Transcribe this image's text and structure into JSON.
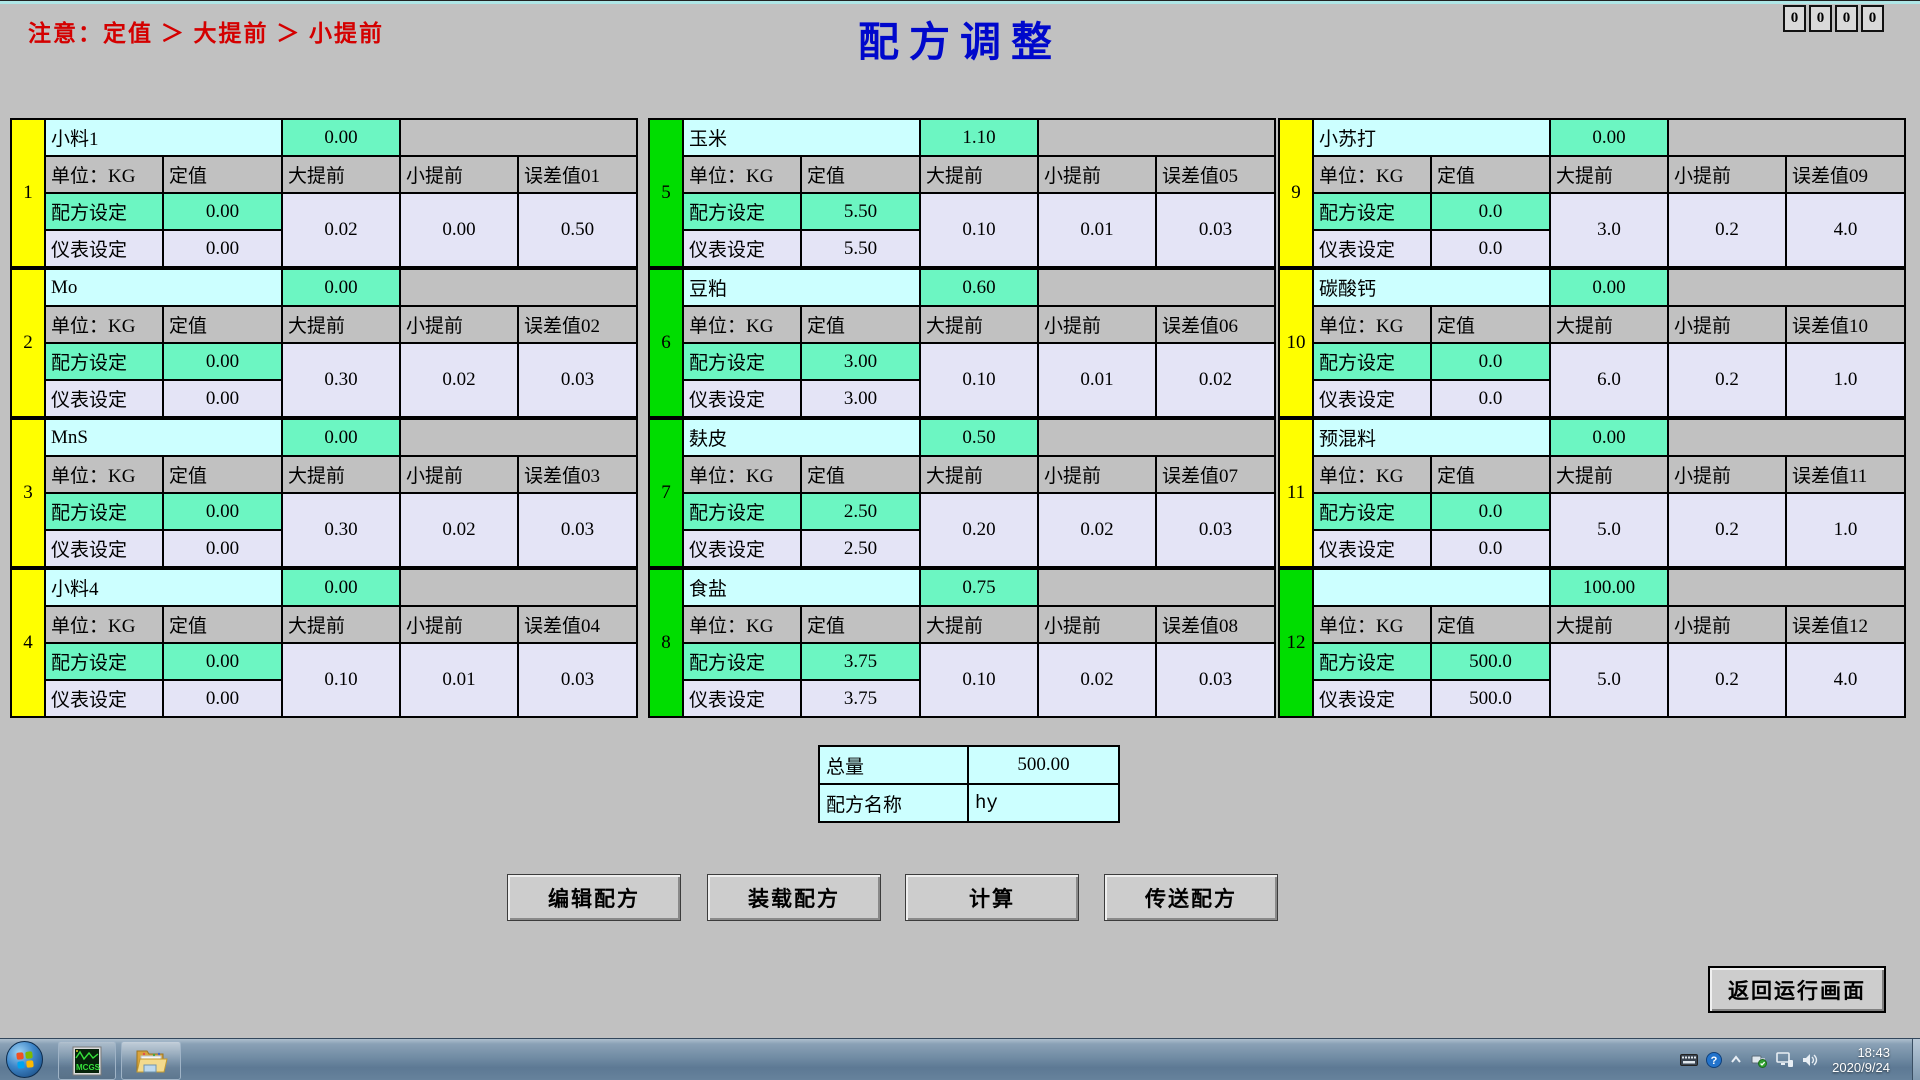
{
  "header": {
    "warning": "注意：定值 ＞ 大提前 ＞ 小提前",
    "title": "配方调整",
    "counters": [
      "0",
      "0",
      "0",
      "0"
    ]
  },
  "labels": {
    "unit": "单位：KG",
    "set_value": "定值",
    "big_advance": "大提前",
    "small_advance": "小提前",
    "recipe_set": "配方设定",
    "meter_set": "仪表设定"
  },
  "panels": [
    {
      "no": "1",
      "strip": "yellow",
      "name": "小料1",
      "top_value": "0.00",
      "recipe_set": "0.00",
      "meter_set": "0.00",
      "big_advance": "0.02",
      "small_advance": "0.00",
      "error_label": "误差值01",
      "error_value": "0.50"
    },
    {
      "no": "2",
      "strip": "yellow",
      "name": "Mo",
      "top_value": "0.00",
      "recipe_set": "0.00",
      "meter_set": "0.00",
      "big_advance": "0.30",
      "small_advance": "0.02",
      "error_label": "误差值02",
      "error_value": "0.03"
    },
    {
      "no": "3",
      "strip": "yellow",
      "name": "MnS",
      "top_value": "0.00",
      "recipe_set": "0.00",
      "meter_set": "0.00",
      "big_advance": "0.30",
      "small_advance": "0.02",
      "error_label": "误差值03",
      "error_value": "0.03"
    },
    {
      "no": "4",
      "strip": "yellow",
      "name": "小料4",
      "top_value": "0.00",
      "recipe_set": "0.00",
      "meter_set": "0.00",
      "big_advance": "0.10",
      "small_advance": "0.01",
      "error_label": "误差值04",
      "error_value": "0.03"
    },
    {
      "no": "5",
      "strip": "green",
      "name": "玉米",
      "top_value": "1.10",
      "recipe_set": "5.50",
      "meter_set": "5.50",
      "big_advance": "0.10",
      "small_advance": "0.01",
      "error_label": "误差值05",
      "error_value": "0.03"
    },
    {
      "no": "6",
      "strip": "green",
      "name": "豆粕",
      "top_value": "0.60",
      "recipe_set": "3.00",
      "meter_set": "3.00",
      "big_advance": "0.10",
      "small_advance": "0.01",
      "error_label": "误差值06",
      "error_value": "0.02"
    },
    {
      "no": "7",
      "strip": "green",
      "name": "麸皮",
      "top_value": "0.50",
      "recipe_set": "2.50",
      "meter_set": "2.50",
      "big_advance": "0.20",
      "small_advance": "0.02",
      "error_label": "误差值07",
      "error_value": "0.03"
    },
    {
      "no": "8",
      "strip": "green",
      "name": "食盐",
      "top_value": "0.75",
      "recipe_set": "3.75",
      "meter_set": "3.75",
      "big_advance": "0.10",
      "small_advance": "0.02",
      "error_label": "误差值08",
      "error_value": "0.03"
    },
    {
      "no": "9",
      "strip": "yellow",
      "name": "小苏打",
      "top_value": "0.00",
      "recipe_set": "0.0",
      "meter_set": "0.0",
      "big_advance": "3.0",
      "small_advance": "0.2",
      "error_label": "误差值09",
      "error_value": "4.0"
    },
    {
      "no": "10",
      "strip": "yellow",
      "name": "碳酸钙",
      "top_value": "0.00",
      "recipe_set": "0.0",
      "meter_set": "0.0",
      "big_advance": "6.0",
      "small_advance": "0.2",
      "error_label": "误差值10",
      "error_value": "1.0"
    },
    {
      "no": "11",
      "strip": "yellow",
      "name": "预混料",
      "top_value": "0.00",
      "recipe_set": "0.0",
      "meter_set": "0.0",
      "big_advance": "5.0",
      "small_advance": "0.2",
      "error_label": "误差值11",
      "error_value": "1.0"
    },
    {
      "no": "12",
      "strip": "green",
      "name": "",
      "top_value": "100.00",
      "recipe_set": "500.0",
      "meter_set": "500.0",
      "big_advance": "5.0",
      "small_advance": "0.2",
      "error_label": "误差值12",
      "error_value": "4.0"
    }
  ],
  "summary": {
    "total_label": "总量",
    "total_value": "500.00",
    "name_label": "配方名称",
    "name_value": "hy"
  },
  "buttons": {
    "edit": "编辑配方",
    "load": "装载配方",
    "calc": "计算",
    "send": "传送配方",
    "back": "返回运行画面"
  },
  "taskbar": {
    "app1": "MCGS",
    "time": "18:43",
    "date": "2020/9/24"
  },
  "colors": {
    "background": "#c1c1c1",
    "title_blue": "#0008cc",
    "warning_red": "#d40000",
    "cell_mint": "#6cf6c2",
    "cell_cyan": "#ccffff",
    "cell_lavender": "#e4e4f6",
    "strip_yellow": "#ffff00",
    "strip_green": "#00dd00"
  }
}
